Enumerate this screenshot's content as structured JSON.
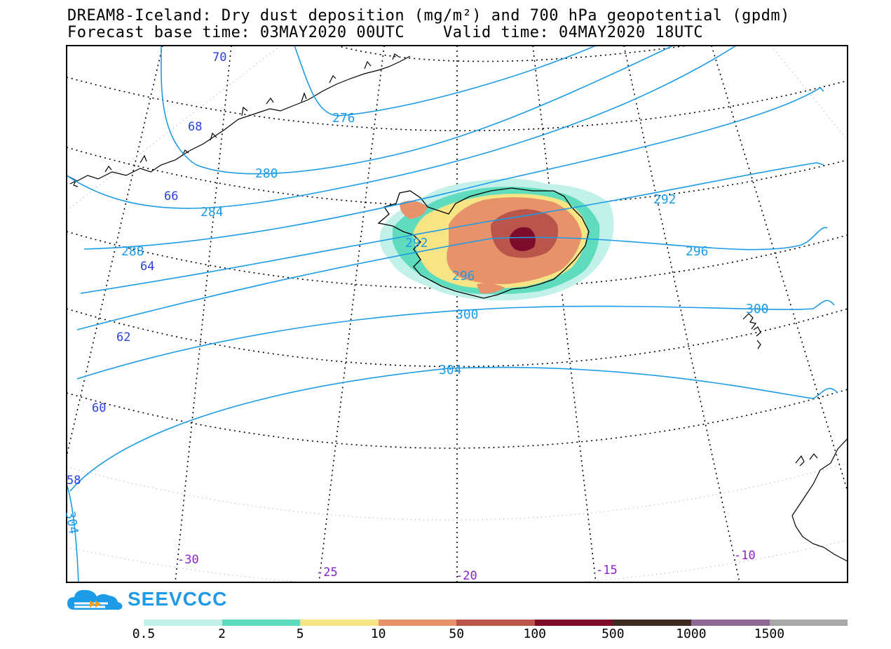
{
  "title": {
    "line1": "DREAM8-Iceland: Dry dust deposition (mg/m²) and 700 hPa geopotential (gpdm)",
    "line2": "Forecast base time: 03MAY2020 00UTC    Valid time: 04MAY2020 18UTC"
  },
  "map": {
    "contour_color": "#1e9be6",
    "lat_label_color": "#2b3fe0",
    "lon_label_color": "#8a1fd0",
    "contour_labels": [
      "276",
      "280",
      "284",
      "288",
      "292",
      "292",
      "296",
      "296",
      "300",
      "300",
      "304",
      "304"
    ],
    "latitude_labels": [
      "70",
      "68",
      "66",
      "64",
      "62",
      "60",
      "58"
    ],
    "longitude_labels": [
      "-30",
      "-25",
      "-20",
      "-15",
      "-10"
    ]
  },
  "logo": {
    "text": "SEEVCCC"
  },
  "legend": {
    "colors": [
      "#c2f1ea",
      "#5fdcbd",
      "#f7e585",
      "#e7926a",
      "#b9554a",
      "#7c0b2c",
      "#3d2a20",
      "#8e6895",
      "#a8a8a8"
    ],
    "labels": [
      "0.5",
      "2",
      "5",
      "10",
      "50",
      "100",
      "500",
      "1000",
      "1500"
    ]
  }
}
